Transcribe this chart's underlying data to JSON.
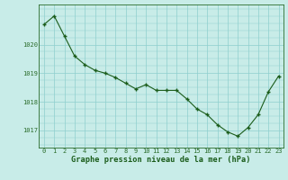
{
  "hours": [
    0,
    1,
    2,
    3,
    4,
    5,
    6,
    7,
    8,
    9,
    10,
    11,
    12,
    13,
    14,
    15,
    16,
    17,
    18,
    19,
    20,
    21,
    22,
    23
  ],
  "pressure": [
    1020.7,
    1021.0,
    1020.3,
    1019.6,
    1019.3,
    1019.1,
    1019.0,
    1018.85,
    1018.65,
    1018.45,
    1018.6,
    1018.4,
    1018.4,
    1018.4,
    1018.1,
    1017.75,
    1017.55,
    1017.2,
    1016.95,
    1016.8,
    1017.1,
    1017.55,
    1018.35,
    1018.9
  ],
  "line_color": "#1a5c1a",
  "marker_color": "#1a5c1a",
  "bg_color": "#c8ece8",
  "grid_color": "#8ecece",
  "ylabel_ticks": [
    1017,
    1018,
    1019,
    1020
  ],
  "xlabel": "Graphe pression niveau de la mer (hPa)",
  "xlabel_color": "#1a5c1a",
  "axis_color": "#2a6c2a",
  "ylim": [
    1016.4,
    1021.4
  ],
  "xlim": [
    -0.5,
    23.5
  ],
  "tick_fontsize": 5.0,
  "label_fontsize": 6.2
}
